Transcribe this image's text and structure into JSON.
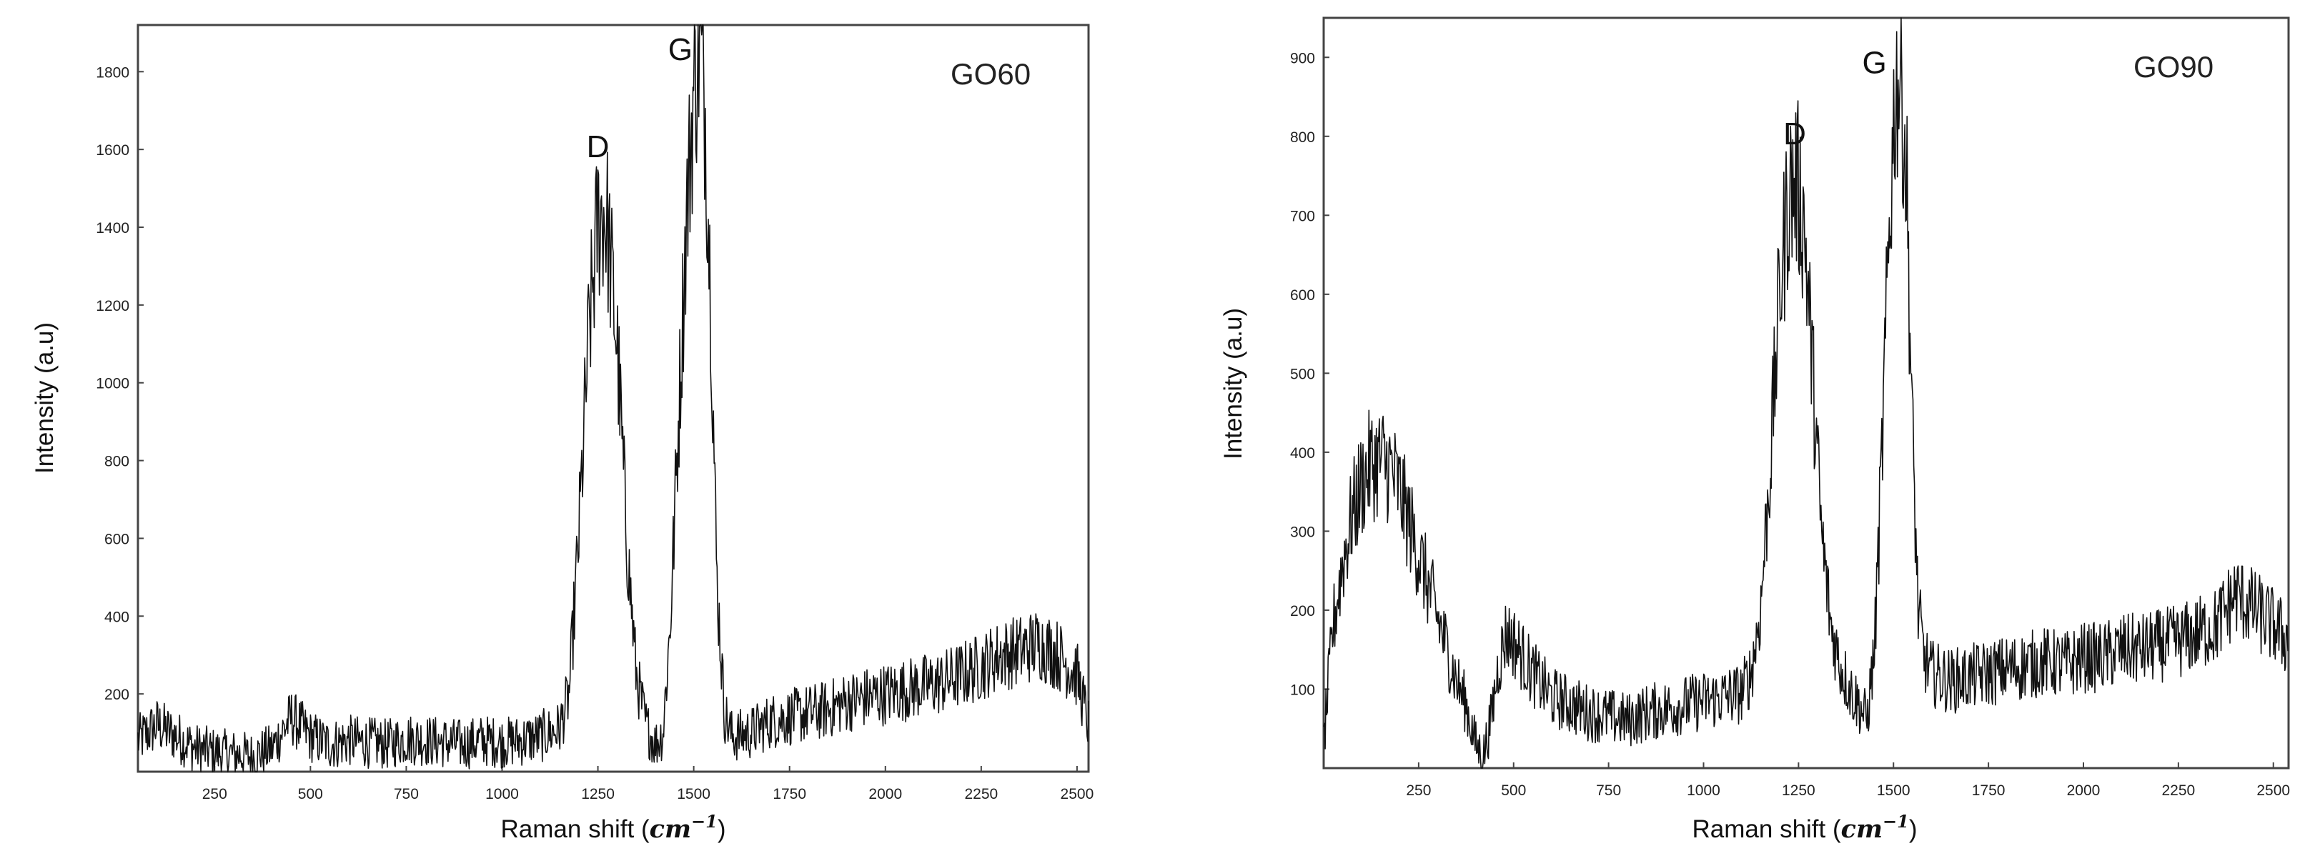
{
  "chart_data": [
    {
      "type": "line",
      "sample_label": "GO60",
      "xlabel_text": "Raman shift (",
      "xlabel_unit": "cm",
      "xlabel_exp": "−1",
      "xlabel_close": ")",
      "ylabel": "Intensity (a.u)",
      "xlim": [
        50,
        2530
      ],
      "ylim": [
        0,
        1920
      ],
      "xticks": [
        250,
        500,
        750,
        1000,
        1250,
        1500,
        1750,
        2000,
        2250,
        2500
      ],
      "yticks": [
        200,
        400,
        600,
        800,
        1000,
        1200,
        1400,
        1600,
        1800
      ],
      "annotations": [
        {
          "text": "D",
          "x": 1250,
          "y": 1580
        },
        {
          "text": "G",
          "x": 1465,
          "y": 1830
        }
      ],
      "series": [
        {
          "x": [
            50,
            100,
            150,
            200,
            250,
            300,
            350,
            400,
            450,
            500,
            550,
            600,
            650,
            700,
            750,
            800,
            850,
            900,
            950,
            1000,
            1050,
            1100,
            1150,
            1175,
            1200,
            1225,
            1250,
            1265,
            1275,
            1300,
            1325,
            1350,
            1375,
            1400,
            1420,
            1440,
            1460,
            1480,
            1500,
            1515,
            1530,
            1545,
            1560,
            1580,
            1600,
            1650,
            1700,
            1750,
            1800,
            1850,
            1900,
            1950,
            2000,
            2050,
            2100,
            2150,
            2200,
            2250,
            2300,
            2350,
            2400,
            2450,
            2500,
            2530
          ],
          "y": [
            80,
            120,
            90,
            60,
            50,
            45,
            40,
            60,
            140,
            90,
            70,
            80,
            75,
            70,
            85,
            80,
            75,
            70,
            80,
            75,
            80,
            90,
            110,
            200,
            600,
            1100,
            1420,
            1440,
            1400,
            1100,
            600,
            250,
            120,
            70,
            100,
            400,
            900,
            1400,
            1750,
            1880,
            1700,
            1200,
            500,
            150,
            90,
            100,
            130,
            140,
            150,
            160,
            180,
            190,
            200,
            210,
            220,
            230,
            250,
            270,
            300,
            310,
            330,
            300,
            250,
            120
          ]
        }
      ]
    },
    {
      "type": "line",
      "sample_label": "GO90",
      "xlabel_text": "Raman shift (",
      "xlabel_unit": "cm",
      "xlabel_exp": "−1",
      "xlabel_close": ")",
      "ylabel": "Intensity (a.u)",
      "xlim": [
        0,
        2540
      ],
      "ylim": [
        0,
        950
      ],
      "xticks": [
        250,
        500,
        750,
        1000,
        1250,
        1500,
        1750,
        2000,
        2250,
        2500
      ],
      "yticks": [
        100,
        200,
        300,
        400,
        500,
        600,
        700,
        800,
        900
      ],
      "annotations": [
        {
          "text": "D",
          "x": 1240,
          "y": 790
        },
        {
          "text": "G",
          "x": 1450,
          "y": 880
        }
      ],
      "series": [
        {
          "x": [
            0,
            25,
            50,
            75,
            100,
            125,
            150,
            175,
            200,
            225,
            250,
            275,
            300,
            325,
            350,
            375,
            400,
            420,
            440,
            460,
            480,
            500,
            550,
            600,
            650,
            700,
            750,
            800,
            850,
            900,
            950,
            1000,
            1050,
            1100,
            1125,
            1150,
            1175,
            1200,
            1225,
            1245,
            1265,
            1285,
            1310,
            1335,
            1360,
            1385,
            1410,
            1430,
            1450,
            1470,
            1490,
            1505,
            1520,
            1535,
            1550,
            1565,
            1580,
            1600,
            1650,
            1700,
            1750,
            1800,
            1850,
            1900,
            1950,
            2000,
            2050,
            2100,
            2150,
            2200,
            2250,
            2300,
            2350,
            2400,
            2450,
            2500,
            2540
          ],
          "y": [
            30,
            180,
            260,
            320,
            360,
            385,
            390,
            380,
            350,
            310,
            270,
            230,
            190,
            150,
            110,
            80,
            30,
            15,
            60,
            130,
            170,
            160,
            120,
            90,
            80,
            70,
            65,
            60,
            70,
            75,
            80,
            85,
            90,
            95,
            120,
            200,
            380,
            600,
            730,
            740,
            690,
            520,
            300,
            180,
            130,
            100,
            80,
            60,
            150,
            400,
            700,
            860,
            880,
            740,
            420,
            200,
            140,
            120,
            110,
            115,
            120,
            125,
            130,
            135,
            130,
            140,
            140,
            150,
            150,
            155,
            160,
            170,
            180,
            220,
            200,
            180,
            160
          ]
        }
      ]
    }
  ]
}
